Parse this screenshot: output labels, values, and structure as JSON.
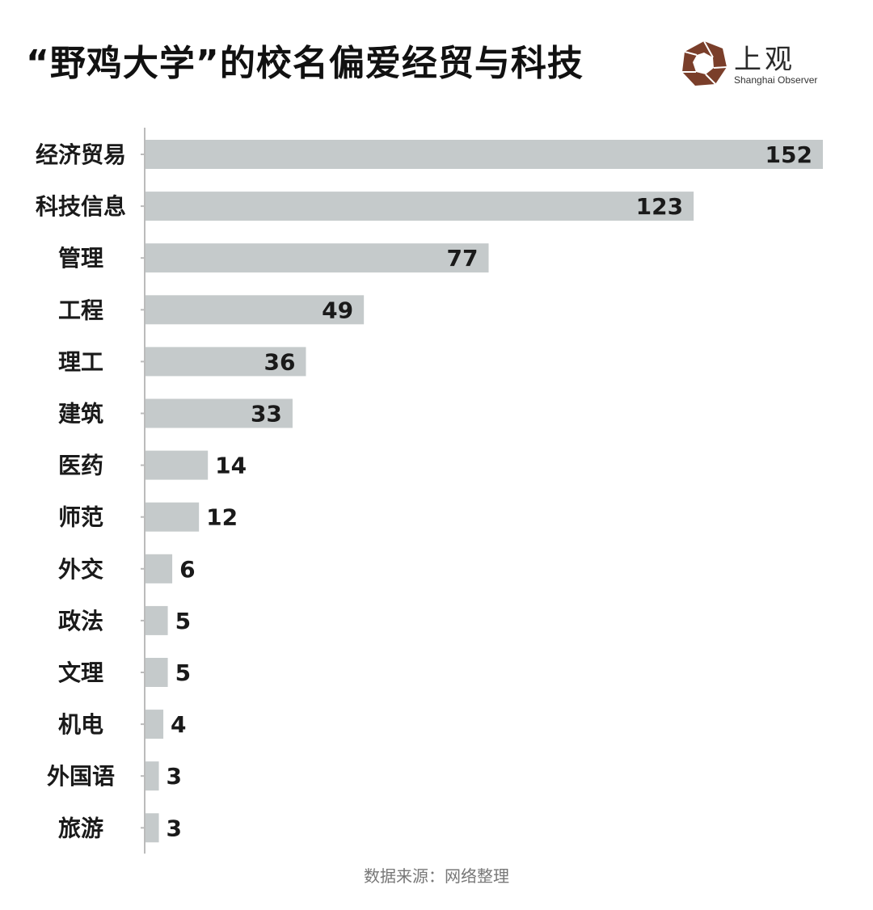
{
  "title": "“野鸡大学”的校名偏爱经贸与科技",
  "logo": {
    "cn": "上观",
    "en": "Shanghai Observer"
  },
  "source": "数据来源：网络整理",
  "colors": {
    "bar": "#c5cacb",
    "axis": "#bbbbbb",
    "label": "#1a1a1a",
    "logo_brown": "#7a3e2a"
  },
  "chart_data": {
    "type": "bar",
    "orientation": "horizontal",
    "categories": [
      "经济贸易",
      "科技信息",
      "管理",
      "工程",
      "理工",
      "建筑",
      "医药",
      "师范",
      "外交",
      "政法",
      "文理",
      "机电",
      "外国语",
      "旅游"
    ],
    "values": [
      152,
      123,
      77,
      49,
      36,
      33,
      14,
      12,
      6,
      5,
      5,
      4,
      3,
      3
    ],
    "title": "“野鸡大学”的校名偏爱经贸与科技",
    "xlabel": "",
    "ylabel": "",
    "xlim": [
      0,
      152
    ],
    "grid": false
  }
}
